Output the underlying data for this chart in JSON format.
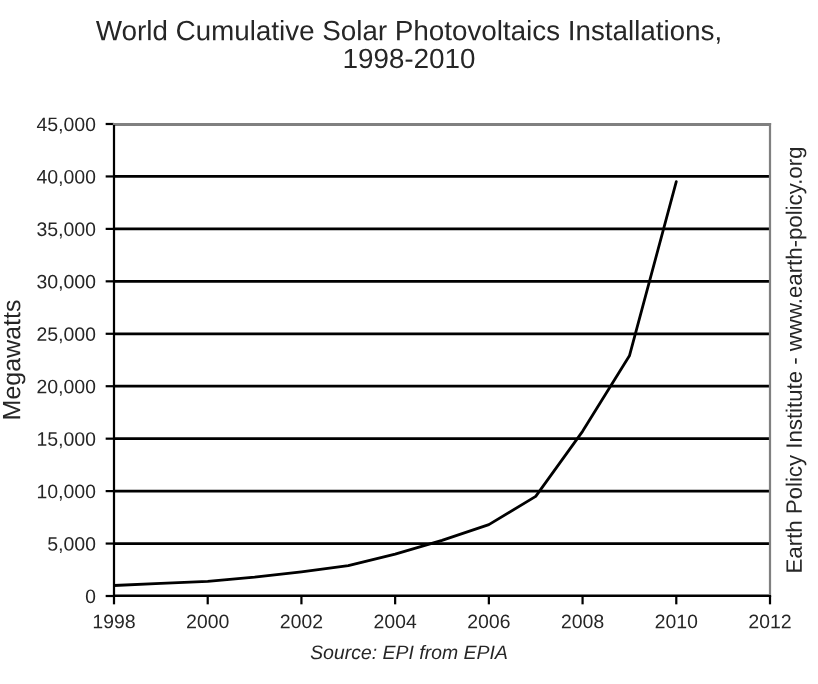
{
  "chart_data": {
    "type": "line",
    "title": "World Cumulative Solar Photovoltaics Installations,\n1998-2010",
    "ylabel": "Megawatts",
    "annotations": [
      "Source: EPI from EPIA",
      "Earth Policy Institute - www.earth-policy.org"
    ],
    "x": [
      1998,
      1999,
      2000,
      2001,
      2002,
      2003,
      2004,
      2005,
      2006,
      2007,
      2008,
      2009,
      2010
    ],
    "series": [
      {
        "color": "#000000",
        "values": [
          1000,
          1200,
          1400,
          1800,
          2300,
          2900,
          4000,
          5300,
          6800,
          9500,
          15700,
          22900,
          39500
        ]
      }
    ],
    "xlim": [
      1998,
      2012
    ],
    "xticks": [
      1998,
      2000,
      2002,
      2004,
      2006,
      2008,
      2010,
      2012
    ],
    "ylim": [
      0,
      45000
    ],
    "yticks": [
      {
        "value": 0,
        "label": "0"
      },
      {
        "value": 5000,
        "label": "5,000"
      },
      {
        "value": 10000,
        "label": "10,000"
      },
      {
        "value": 15000,
        "label": "15,000"
      },
      {
        "value": 20000,
        "label": "20,000"
      },
      {
        "value": 25000,
        "label": "25,000"
      },
      {
        "value": 30000,
        "label": "30,000"
      },
      {
        "value": 35000,
        "label": "35,000"
      },
      {
        "value": 40000,
        "label": "40,000"
      },
      {
        "value": 45000,
        "label": "45,000"
      }
    ],
    "grid": "y",
    "marker": "none",
    "line_style": "solid"
  }
}
